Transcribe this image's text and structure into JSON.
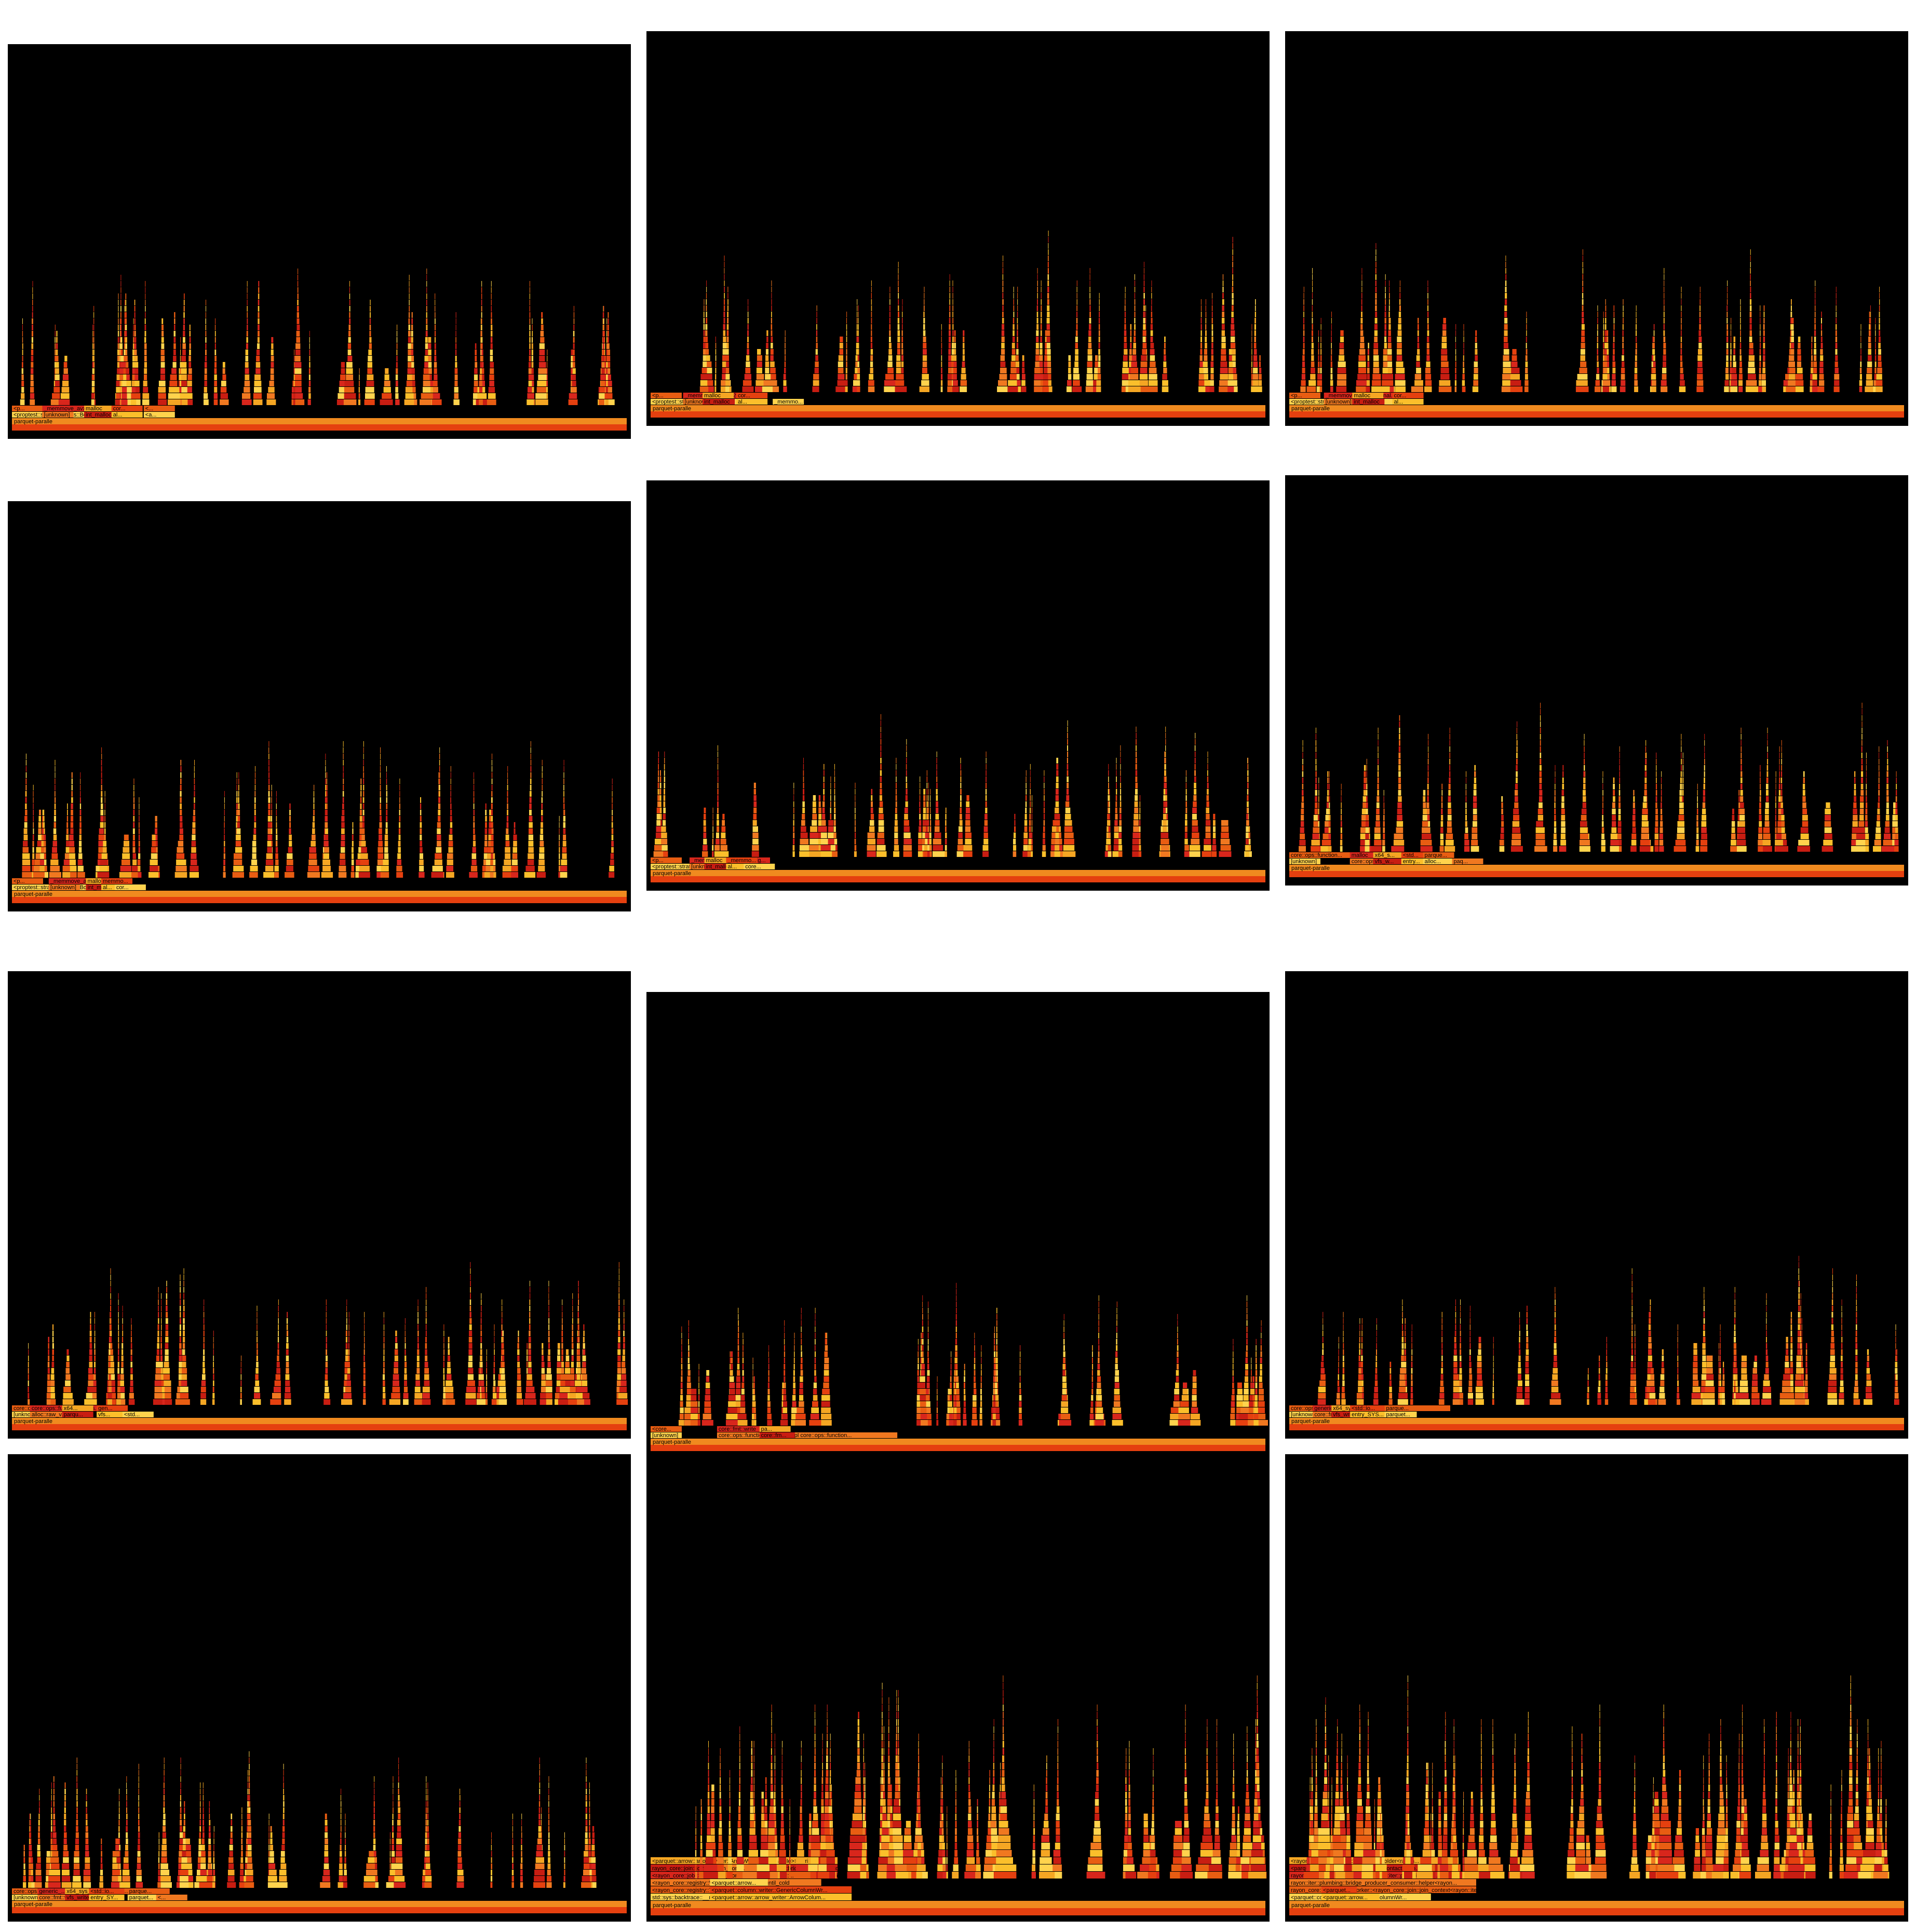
{
  "chart_data": [
    {
      "type": "flamegraph",
      "labels": [
        "parquet-paralle",
        "<proptest::strategy::traits::Bo...",
        "<p...",
        "[unknown]",
        "_memmove_avx512_una...",
        "int_malloc",
        "malloc",
        "al...",
        "cor...",
        "<a...",
        "<..."
      ]
    },
    {
      "type": "flamegraph",
      "labels": [
        "parquet-paralle",
        "<proptest::strategy::traits::Bo...",
        "<p...",
        "[unknown]",
        "_memmove_avx512_unal...",
        "int_malloc",
        "malloc",
        "al...",
        "cor...",
        "_memmo..."
      ]
    },
    {
      "type": "flamegraph",
      "labels": [
        "parquet-paralle",
        "<proptest::strategy::traits::Bo...",
        "<p...",
        "[unknown]",
        "_memmove_avx512_unal...",
        "int_malloc",
        "malloc",
        "al...",
        "cor..."
      ]
    },
    {
      "type": "flamegraph",
      "labels": [
        "parquet-paralle",
        "<proptest::strategy::traits::Boxe...",
        "<p...",
        "[unknown]",
        "_memmove_avx512_unal...",
        "int_malloc",
        "malloc",
        "al...",
        "memmo...",
        "cor..."
      ]
    },
    {
      "type": "flamegraph",
      "labels": [
        "parquet-paralle",
        "<proptest::strategy::traits::B...",
        "<p...",
        "[unknown]",
        "_memmove_avx512_unalig...",
        "int_malloc",
        "malloc",
        "al...",
        "_memmo...",
        "core..."
      ]
    },
    {
      "type": "flamegraph",
      "labels": [
        "parquet-paralle",
        "[unknown]",
        "core::ops::function...",
        "core::ops::function::imp...",
        "malloc",
        "vfs_w...",
        "x64_s...",
        "entry...",
        "<std...",
        "alloc...",
        "parque...",
        "paq..."
      ]
    },
    {
      "type": "flamegraph",
      "labels": [
        "parquet-paralle",
        "[unknown]",
        "core::ops::function",
        "alloc::raw_v...",
        "core::ops::function::impls...",
        "parqu...",
        "x64...",
        "vfs...",
        "gen...",
        "<std..."
      ]
    },
    {
      "type": "flamegraph",
      "labels": [
        "parquet-paralle",
        "[unknown]",
        "<core...",
        "core::ops::function::impls::<impl core::ops::function...",
        "core::fmt::write",
        "core::fm...",
        "pa..."
      ]
    },
    {
      "type": "flamegraph",
      "labels": [
        "parquet-paralle",
        "[unknown]",
        "core::ops::function::impls::<impl core::ops::fu...",
        "core::fmt::wr...",
        "generic_...",
        "vfs_write",
        "x64_sys_c...",
        "entry_SYS...",
        "<std::io...",
        "parquet...",
        "parque..."
      ]
    },
    {
      "type": "flamegraph",
      "labels": [
        "parquet-paralle",
        "[unknown]",
        "core::ops::function::impls::<impl core::ops::f...",
        "core::fmt::wr...",
        "generic_...",
        "vfs_write",
        "x64_sys_...",
        "entry_SY...",
        "<std::io...",
        "parquet...",
        "parque...",
        "<..."
      ]
    },
    {
      "type": "flamegraph",
      "labels": [
        "parquet-paralle",
        "std::sys::backtrace::__rust_begin_short_backtrace::<rayon_core::registry::DefaultSpaw...",
        "<rayon_core::registry::ThreadBuilder>::run",
        "<rayon_core::registry::WorkerThread>::wait_until_cold",
        "<rayon_core::job::StackJob<rayon_core::latch::SpinLatch, rayon_core::join::join...",
        "rayon_core::join::join_context::<rayon::iter::plumbing::bridge_producer_consume...",
        "<parquet::arrow::arrow_writer::ArrowWriter<std::fs::File>>::write",
        "<parquet::arrow::arrow_writer::ArrowColum...",
        "<parquet::column::writer::GenericColumnWr...",
        "<parquet::arrow...",
        "rayon_core::join::join_context::...",
        "rayon_core..."
      ]
    },
    {
      "type": "flamegraph",
      "labels": [
        "parquet-paralle",
        "<parquet::column::writer::GenericColumnWr...",
        "rayon_core::registry::in_worker::<rayon_core::join::join_context<rayon::iter...",
        "rayon::iter::plumbing::bridge_producer_consumer::helper<rayon...",
        "rayon_core::join::join_context::<rayon::iter::plumbing::bri...",
        "<parquet_nested_parallel::datagen::ContactReco...",
        "<rayon::iter::try_reduce::TryReduceFolder<rayon...",
        "<parquet::arrow...",
        "<parquet..."
      ]
    }
  ]
}
